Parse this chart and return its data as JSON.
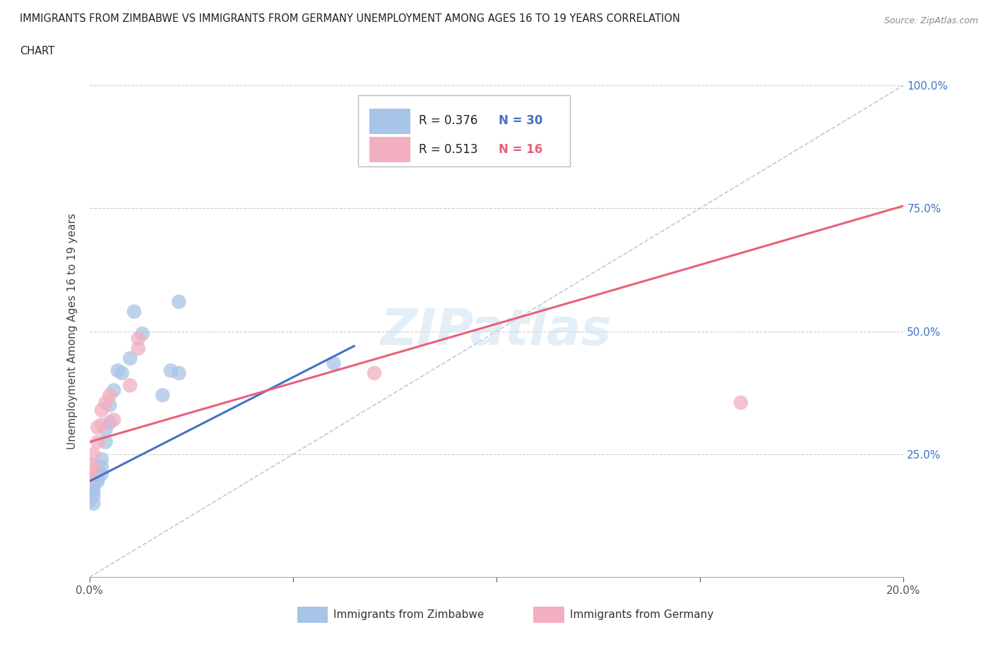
{
  "title_line1": "IMMIGRANTS FROM ZIMBABWE VS IMMIGRANTS FROM GERMANY UNEMPLOYMENT AMONG AGES 16 TO 19 YEARS CORRELATION",
  "title_line2": "CHART",
  "source_text": "Source: ZipAtlas.com",
  "ylabel": "Unemployment Among Ages 16 to 19 years",
  "xlim": [
    0.0,
    0.2
  ],
  "ylim": [
    0.0,
    1.0
  ],
  "background_color": "#ffffff",
  "grid_color": "#cccccc",
  "watermark": "ZIPatlas",
  "legend_R_zimbabwe": "R = 0.376",
  "legend_N_zimbabwe": "N = 30",
  "legend_R_germany": "R = 0.513",
  "legend_N_germany": "N = 16",
  "legend_label_zimbabwe": "Immigrants from Zimbabwe",
  "legend_label_germany": "Immigrants from Germany",
  "zimbabwe_color": "#a8c4e6",
  "germany_color": "#f2afc0",
  "zimbabwe_line_color": "#4472c4",
  "germany_line_color": "#e8607a",
  "diagonal_color": "#b0bcd0",
  "zim_line_x0": 0.0,
  "zim_line_y0": 0.195,
  "zim_line_x1": 0.065,
  "zim_line_y1": 0.47,
  "ger_line_x0": 0.0,
  "ger_line_y0": 0.275,
  "ger_line_x1": 0.2,
  "ger_line_y1": 0.755,
  "zimbabwe_x": [
    0.0,
    0.0,
    0.0,
    0.0,
    0.0,
    0.001,
    0.001,
    0.001,
    0.001,
    0.002,
    0.002,
    0.002,
    0.003,
    0.003,
    0.003,
    0.004,
    0.004,
    0.005,
    0.005,
    0.006,
    0.007,
    0.008,
    0.01,
    0.011,
    0.013,
    0.018,
    0.02,
    0.022,
    0.022,
    0.06
  ],
  "zimbabwe_y": [
    0.155,
    0.17,
    0.175,
    0.18,
    0.19,
    0.15,
    0.165,
    0.175,
    0.185,
    0.195,
    0.21,
    0.2,
    0.21,
    0.225,
    0.24,
    0.275,
    0.3,
    0.315,
    0.35,
    0.38,
    0.42,
    0.415,
    0.445,
    0.54,
    0.495,
    0.37,
    0.42,
    0.415,
    0.56,
    0.435
  ],
  "germany_x": [
    0.0,
    0.0,
    0.001,
    0.001,
    0.002,
    0.002,
    0.003,
    0.003,
    0.004,
    0.005,
    0.006,
    0.01,
    0.012,
    0.012,
    0.07,
    0.16
  ],
  "germany_y": [
    0.205,
    0.23,
    0.22,
    0.25,
    0.275,
    0.305,
    0.31,
    0.34,
    0.355,
    0.37,
    0.32,
    0.39,
    0.465,
    0.485,
    0.415,
    0.355
  ]
}
